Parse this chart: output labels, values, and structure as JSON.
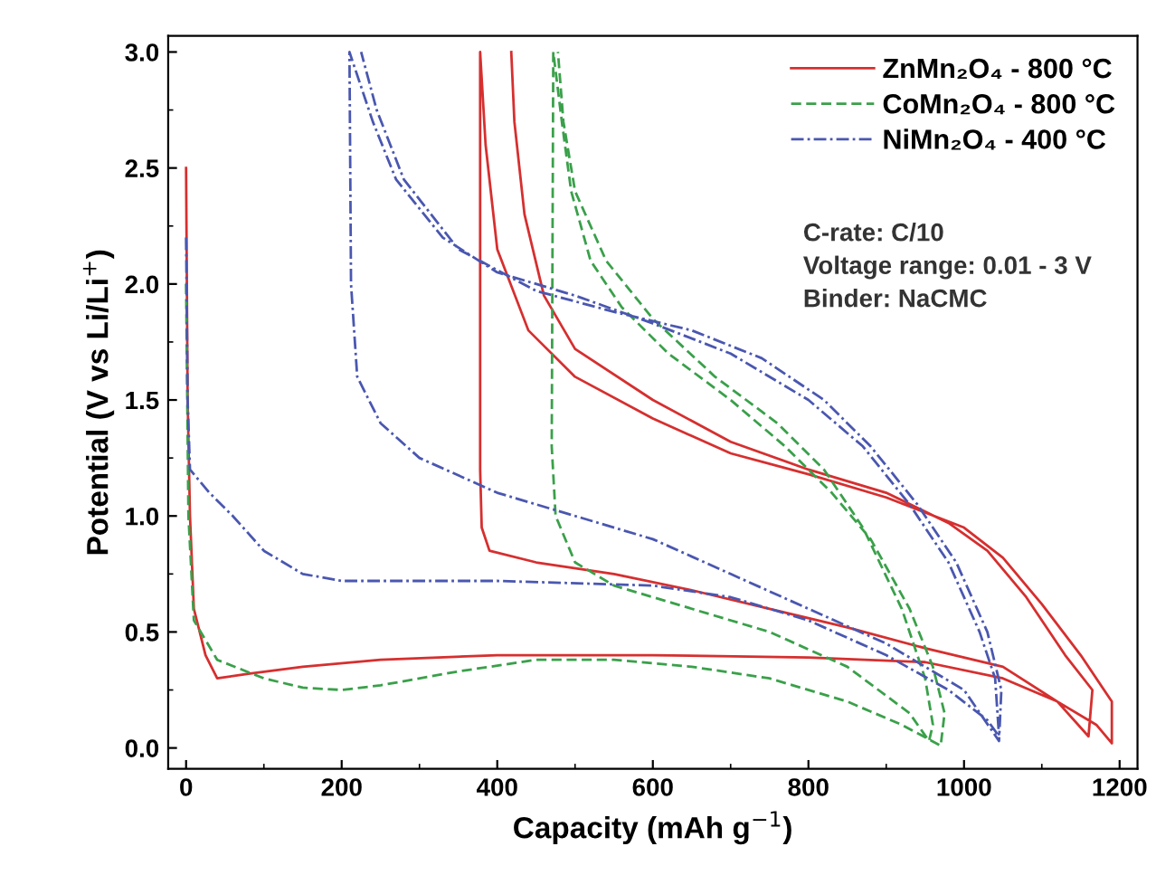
{
  "chart_data": {
    "type": "line",
    "xlabel": "Capacity (mAh g$^{−1}$)",
    "ylabel": "Potential (V vs Li/Li$^{+}$)",
    "xlim": [
      -23,
      1223
    ],
    "ylim": [
      -0.09,
      3.07
    ],
    "xticks": [
      0,
      200,
      400,
      600,
      800,
      1000,
      1200
    ],
    "yticks": [
      {
        "value": 0,
        "label": "0.0"
      },
      0.5,
      {
        "value": 1,
        "label": "1.0"
      },
      1.5,
      {
        "value": 2,
        "label": "2.0"
      },
      2.5,
      {
        "value": 3,
        "label": "3.0"
      }
    ],
    "grid": false,
    "legend": "top right",
    "marker": "none",
    "annotations": [
      "C-rate: C/10",
      "Voltage range: 0.01 - 3 V",
      "Binder: NaCMC"
    ],
    "series": [
      {
        "name": "ZnMn₂O₄ - 800 °C",
        "color": "#d62f2f",
        "line_style": "solid",
        "x": [
          0,
          2,
          5,
          10,
          25,
          40,
          80,
          150,
          250,
          400,
          600,
          800,
          950,
          1050,
          1120,
          1170,
          1190,
          1190,
          1150,
          1100,
          1050,
          1000,
          900,
          800,
          700,
          600,
          500,
          440,
          400,
          385,
          378,
          378,
          378,
          380,
          390,
          450,
          550,
          650,
          750,
          850,
          950,
          1050,
          1120,
          1160,
          1165,
          1130,
          1080,
          1030,
          980,
          900,
          800,
          700,
          600,
          500,
          460,
          435,
          422,
          418
        ],
        "values": [
          2.5,
          1.5,
          1.0,
          0.6,
          0.4,
          0.3,
          0.32,
          0.35,
          0.38,
          0.4,
          0.4,
          0.39,
          0.37,
          0.3,
          0.2,
          0.1,
          0.02,
          0.2,
          0.4,
          0.62,
          0.82,
          0.95,
          1.08,
          1.18,
          1.27,
          1.42,
          1.6,
          1.8,
          2.15,
          2.6,
          3.0,
          1.5,
          1.2,
          0.95,
          0.85,
          0.8,
          0.75,
          0.68,
          0.6,
          0.52,
          0.43,
          0.35,
          0.2,
          0.05,
          0.25,
          0.4,
          0.65,
          0.85,
          0.97,
          1.1,
          1.2,
          1.32,
          1.5,
          1.72,
          1.95,
          2.3,
          2.7,
          3.0
        ]
      },
      {
        "name": "CoMn₂O₄ - 800 °C",
        "color": "#3aa04a",
        "line_style": "dashed",
        "x": [
          0,
          3,
          10,
          40,
          100,
          150,
          200,
          250,
          350,
          450,
          550,
          650,
          750,
          850,
          920,
          970,
          975,
          960,
          930,
          880,
          830,
          770,
          700,
          620,
          560,
          520,
          495,
          483,
          472,
          470,
          470,
          475,
          500,
          550,
          650,
          750,
          850,
          930,
          955,
          960,
          950,
          920,
          870,
          820,
          760,
          680,
          600,
          540,
          500,
          485,
          478
        ],
        "values": [
          2.0,
          1.0,
          0.55,
          0.38,
          0.3,
          0.26,
          0.25,
          0.27,
          0.33,
          0.38,
          0.38,
          0.35,
          0.3,
          0.2,
          0.1,
          0.01,
          0.15,
          0.35,
          0.6,
          0.9,
          1.1,
          1.3,
          1.5,
          1.7,
          1.9,
          2.1,
          2.4,
          2.7,
          3.0,
          1.3,
          1.3,
          1.0,
          0.8,
          0.7,
          0.6,
          0.5,
          0.35,
          0.15,
          0.03,
          0.1,
          0.3,
          0.6,
          0.95,
          1.2,
          1.4,
          1.6,
          1.85,
          2.1,
          2.4,
          2.7,
          3.0
        ]
      },
      {
        "name": "NiMn₂O₄ - 400 °C",
        "color": "#4a57b0",
        "line_style": "dashdot",
        "x": [
          0,
          2,
          5,
          30,
          60,
          100,
          150,
          200,
          400,
          600,
          700,
          800,
          900,
          980,
          1030,
          1045,
          1040,
          1020,
          980,
          930,
          870,
          800,
          700,
          600,
          500,
          400,
          330,
          270,
          240,
          210,
          212,
          220,
          250,
          300,
          400,
          500,
          600,
          700,
          800,
          900,
          1000,
          1045,
          1048,
          1030,
          990,
          940,
          880,
          820,
          740,
          650,
          550,
          450,
          350,
          280,
          245,
          225
        ],
        "values": [
          2.2,
          1.5,
          1.2,
          1.1,
          1.0,
          0.85,
          0.75,
          0.72,
          0.72,
          0.7,
          0.65,
          0.55,
          0.4,
          0.25,
          0.12,
          0.05,
          0.3,
          0.5,
          0.8,
          1.05,
          1.3,
          1.5,
          1.7,
          1.83,
          1.95,
          2.05,
          2.2,
          2.45,
          2.7,
          3.0,
          2.0,
          1.6,
          1.4,
          1.25,
          1.1,
          1.0,
          0.9,
          0.75,
          0.6,
          0.45,
          0.25,
          0.03,
          0.25,
          0.5,
          0.8,
          1.05,
          1.3,
          1.5,
          1.68,
          1.8,
          1.88,
          1.97,
          2.15,
          2.45,
          2.75,
          3.0
        ]
      }
    ]
  }
}
